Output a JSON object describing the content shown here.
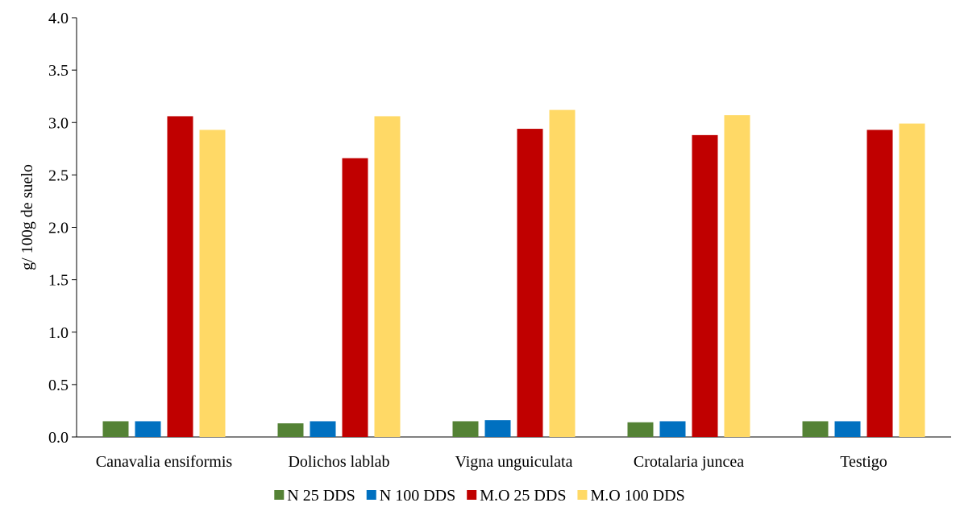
{
  "chart_data": {
    "type": "bar",
    "title": "",
    "xlabel": "",
    "ylabel": "g/ 100g de suelo",
    "ylim": [
      0,
      4.0
    ],
    "yticks": [
      "0.0",
      "0.5",
      "1.0",
      "1.5",
      "2.0",
      "2.5",
      "3.0",
      "3.5",
      "4.0"
    ],
    "grid": false,
    "legend_position": "bottom",
    "categories": [
      "Canavalia ensiformis",
      "Dolichos lablab",
      "Vigna unguiculata",
      "Crotalaria juncea",
      "Testigo"
    ],
    "series": [
      {
        "name": "N 25 DDS",
        "color": "#548235",
        "values": [
          0.15,
          0.13,
          0.15,
          0.14,
          0.15
        ]
      },
      {
        "name": "N 100 DDS",
        "color": "#0070c0",
        "values": [
          0.15,
          0.15,
          0.16,
          0.15,
          0.15
        ]
      },
      {
        "name": "M.O 25 DDS",
        "color": "#c00000",
        "values": [
          3.06,
          2.66,
          2.94,
          2.88,
          2.93
        ]
      },
      {
        "name": "M.O 100 DDS",
        "color": "#ffd966",
        "values": [
          2.93,
          3.06,
          3.12,
          3.07,
          2.99
        ]
      }
    ]
  }
}
